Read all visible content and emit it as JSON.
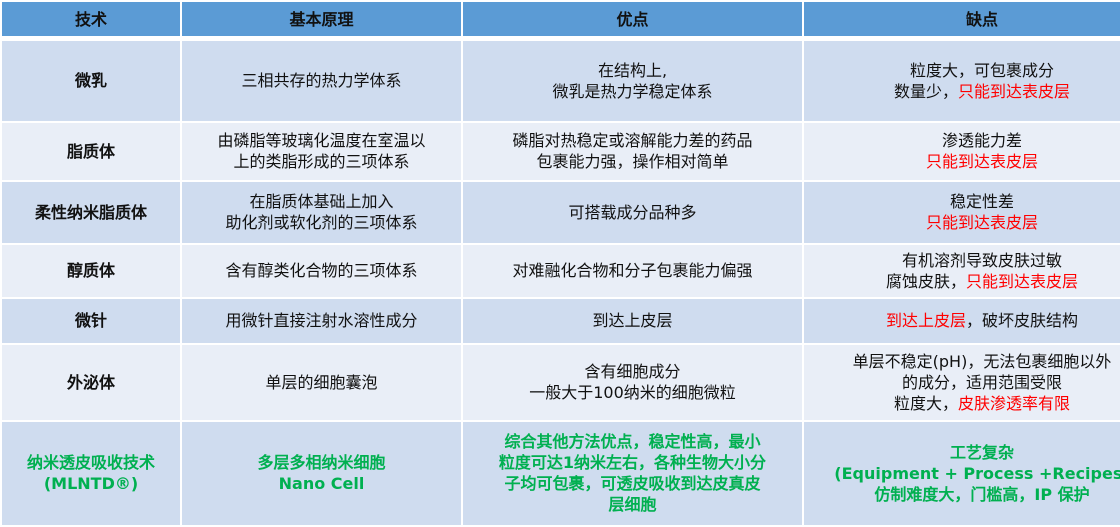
{
  "colors": {
    "header_bg": "#5b9bd5",
    "row_odd": "#cfdcef",
    "row_even": "#e9eef7",
    "highlight_green": "#00b050",
    "warning_red": "#ff0000"
  },
  "headers": [
    "技术",
    "基本原理",
    "优点",
    "缺点"
  ],
  "rows": [
    {
      "cells": [
        [
          [
            {
              "t": "微乳"
            }
          ]
        ],
        [
          [
            {
              "t": "三相共存的热力学体系"
            }
          ]
        ],
        [
          [
            {
              "t": "在结构上,"
            }
          ],
          [
            {
              "t": "微乳是热力学稳定体系"
            }
          ]
        ],
        [
          [
            {
              "t": "粒度大，可包裹成分"
            }
          ],
          [
            {
              "t": "数量少，"
            },
            {
              "t": "只能到达表皮层",
              "red": true
            }
          ]
        ]
      ]
    },
    {
      "cells": [
        [
          [
            {
              "t": "脂质体"
            }
          ]
        ],
        [
          [
            {
              "t": "由磷脂等玻璃化温度在室温以"
            }
          ],
          [
            {
              "t": "上的类脂形成的三项体系"
            }
          ]
        ],
        [
          [
            {
              "t": "磷脂对热稳定或溶解能力差的药品"
            }
          ],
          [
            {
              "t": "包裹能力强，操作相对简单"
            }
          ]
        ],
        [
          [
            {
              "t": "渗透能力差"
            }
          ],
          [
            {
              "t": "只能到达表皮层",
              "red": true
            }
          ]
        ]
      ]
    },
    {
      "cells": [
        [
          [
            {
              "t": "柔性纳米脂质体"
            }
          ]
        ],
        [
          [
            {
              "t": "在脂质体基础上加入"
            }
          ],
          [
            {
              "t": "助化剂或软化剂的三项体系"
            }
          ]
        ],
        [
          [
            {
              "t": "可搭载成分品种多"
            }
          ]
        ],
        [
          [
            {
              "t": "稳定性差"
            }
          ],
          [
            {
              "t": "只能到达表皮层",
              "red": true
            }
          ]
        ]
      ]
    },
    {
      "cells": [
        [
          [
            {
              "t": "醇质体"
            }
          ]
        ],
        [
          [
            {
              "t": "含有醇类化合物的三项体系"
            }
          ]
        ],
        [
          [
            {
              "t": "对难融化合物和分子包裹能力偏强"
            }
          ]
        ],
        [
          [
            {
              "t": "有机溶剂导致皮肤过敏"
            }
          ],
          [
            {
              "t": "腐蚀皮肤，"
            },
            {
              "t": "只能到达表皮层",
              "red": true
            }
          ]
        ]
      ]
    },
    {
      "cells": [
        [
          [
            {
              "t": "微针"
            }
          ]
        ],
        [
          [
            {
              "t": "用微针直接注射水溶性成分"
            }
          ]
        ],
        [
          [
            {
              "t": "到达上皮层"
            }
          ]
        ],
        [
          [
            {
              "t": "到达上皮层",
              "red": true
            },
            {
              "t": "，破坏皮肤结构"
            }
          ]
        ]
      ]
    },
    {
      "cells": [
        [
          [
            {
              "t": "外泌体"
            }
          ]
        ],
        [
          [
            {
              "t": "单层的细胞囊泡"
            }
          ]
        ],
        [
          [
            {
              "t": "含有细胞成分"
            }
          ],
          [
            {
              "t": "一般大于100纳米的细胞微粒"
            }
          ]
        ],
        [
          [
            {
              "t": "单层不稳定(pH)，无法包裹细胞以外"
            }
          ],
          [
            {
              "t": "的成分，适用范围受限"
            }
          ],
          [
            {
              "t": "粒度大，"
            },
            {
              "t": "皮肤渗透率有限",
              "red": true
            }
          ]
        ]
      ]
    },
    {
      "highlight": true,
      "cells": [
        [
          [
            {
              "t": "纳米透皮吸收技术"
            }
          ],
          [
            {
              "t": "(MLNTD®)"
            }
          ]
        ],
        [
          [
            {
              "t": "多层多相纳米细胞"
            }
          ],
          [
            {
              "t": "Nano Cell"
            }
          ]
        ],
        [
          [
            {
              "t": "综合其他方法优点，稳定性高，最小"
            }
          ],
          [
            {
              "t": "粒度可达1纳米左右，各种生物大小分"
            }
          ],
          [
            {
              "t": "子均可包裹，可透皮吸收到达皮真皮"
            }
          ],
          [
            {
              "t": "层细胞"
            }
          ]
        ],
        [
          [
            {
              "t": "工艺复杂"
            }
          ],
          [
            {
              "t": "(Equipment + Process +Recipes)"
            }
          ],
          [
            {
              "t": "仿制难度大，门槛高，IP 保护"
            }
          ]
        ]
      ]
    }
  ]
}
